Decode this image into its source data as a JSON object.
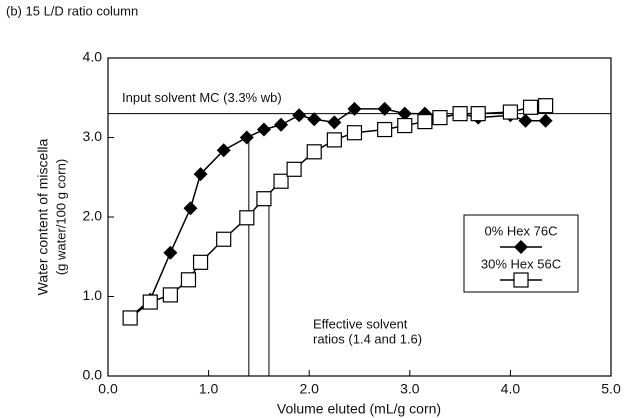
{
  "chart_data": {
    "type": "line",
    "title": "(b) 15 L/D ratio column",
    "x_label": "Volume eluted (mL/g corn)",
    "y_label": [
      "Water content of miscella",
      "(g water/100 g corn)"
    ],
    "xlim": [
      0,
      5
    ],
    "ylim": [
      0,
      4
    ],
    "xticks": [
      {
        "value": 0,
        "label": "0.0"
      },
      {
        "value": 1,
        "label": "1.0"
      },
      {
        "value": 2,
        "label": "2.0"
      },
      {
        "value": 3,
        "label": "3.0"
      },
      {
        "value": 4,
        "label": "4.0"
      },
      {
        "value": 5,
        "label": "5.0"
      }
    ],
    "yticks": [
      {
        "value": 0,
        "label": "0.0"
      },
      {
        "value": 1,
        "label": "1.0"
      },
      {
        "value": 2,
        "label": "2.0"
      },
      {
        "value": 3,
        "label": "3.0"
      },
      {
        "value": 4,
        "label": "4.0"
      }
    ],
    "grid": false,
    "legend": "right",
    "series": [
      {
        "name": "0% Hex 76C",
        "color": "#000000",
        "marker": "diamond",
        "x": [
          0.22,
          0.42,
          0.62,
          0.82,
          0.92,
          1.15,
          1.38,
          1.55,
          1.72,
          1.9,
          2.05,
          2.25,
          2.45,
          2.75,
          2.95,
          3.15,
          3.3,
          3.5,
          3.68,
          4.0,
          4.15,
          4.35
        ],
        "values": [
          0.74,
          0.96,
          1.55,
          2.11,
          2.54,
          2.84,
          3.0,
          3.1,
          3.16,
          3.28,
          3.23,
          3.19,
          3.36,
          3.36,
          3.3,
          3.3,
          3.25,
          3.3,
          3.25,
          3.28,
          3.21,
          3.21
        ]
      },
      {
        "name": "30% Hex 56C",
        "color": "#000000",
        "marker": "square",
        "x": [
          0.22,
          0.42,
          0.62,
          0.8,
          0.92,
          1.15,
          1.38,
          1.55,
          1.72,
          1.85,
          2.05,
          2.25,
          2.45,
          2.75,
          2.95,
          3.15,
          3.3,
          3.5,
          3.68,
          4.0,
          4.2,
          4.35
        ],
        "values": [
          0.73,
          0.93,
          1.02,
          1.21,
          1.43,
          1.72,
          1.99,
          2.23,
          2.45,
          2.6,
          2.82,
          2.97,
          3.06,
          3.1,
          3.15,
          3.2,
          3.25,
          3.3,
          3.3,
          3.32,
          3.38,
          3.4
        ]
      }
    ],
    "hline": {
      "value": 3.3,
      "label": "Input solvent MC (3.3% wb)"
    },
    "vlines": [
      {
        "x": 1.4,
        "y": 3.0
      },
      {
        "x": 1.6,
        "y": 2.28
      }
    ],
    "vlines_label": [
      "Effective solvent",
      "ratios (1.4 and 1.6)"
    ]
  }
}
